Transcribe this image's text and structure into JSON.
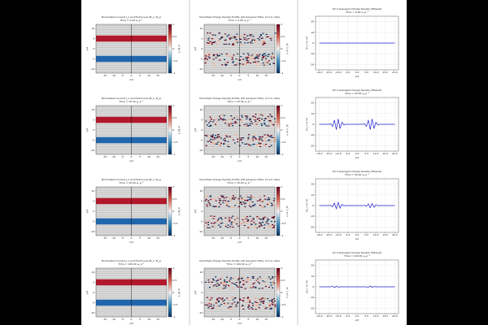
{
  "chart_data": [
    {
      "type": "heatmap",
      "title": "Normalized Current J_z and Field Lines (B_x, B_y)",
      "subtitle": "Time = 0.00 ω_p⁻¹",
      "xlabel": "x/d",
      "ylabel": "y/d",
      "xlim": [
        -20,
        20
      ],
      "xticks": [
        -15,
        -10,
        -5,
        0,
        5,
        10,
        15
      ],
      "ylim": [
        -12,
        12
      ],
      "yticks": [
        -10,
        -5,
        0,
        5,
        10
      ],
      "colorbar_label": "J_z/J_0",
      "clim": [
        -1,
        1
      ],
      "cticks": [
        -1,
        -0.5,
        0,
        0.5,
        1
      ]
    },
    {
      "type": "heatmap_noise",
      "title": "Smoothed Charge Density Profile (2D Gaussian Filter, σ=1.0 cells)",
      "subtitle": "Time = 0.00 ω_p⁻¹",
      "xlabel": "x/d",
      "ylabel": "y/d",
      "xlim": [
        -20,
        20
      ],
      "xticks": [
        -15,
        -10,
        -5,
        0,
        5,
        10,
        15
      ],
      "ylim": [
        -12,
        12
      ],
      "yticks": [
        -10,
        -5,
        0,
        5,
        10
      ],
      "colorbar_label": "ρ (e n_0)",
      "clim": [
        -1,
        1
      ],
      "cticks": [
        -1,
        -0.5,
        0,
        0.5,
        1
      ]
    },
    {
      "type": "line",
      "title": "1D X-Averaged Charge Density (Filtered)",
      "subtitle": "Time = 0.00 ω_p⁻¹",
      "xlabel": "x/d",
      "ylabel": "⟨ρ⟩_x (e n₀)",
      "grid": true,
      "color": "#1f1fd0",
      "xlim": [
        -22,
        22
      ],
      "xticks": [
        {
          "value": -20,
          "label": "-20.0"
        },
        {
          "value": -15,
          "label": "-15.0"
        },
        {
          "value": -10,
          "label": "-10.0"
        },
        {
          "value": -5,
          "label": "-5.0"
        },
        {
          "value": 0,
          "label": "0.0"
        },
        {
          "value": 5,
          "label": "5.0"
        },
        {
          "value": 10,
          "label": "10.0"
        },
        {
          "value": 15,
          "label": "15.0"
        },
        {
          "value": 20,
          "label": "20.0"
        }
      ],
      "ylim": [
        -25,
        25
      ],
      "yticks": [
        -20,
        -10,
        0,
        10,
        20
      ],
      "x": [
        -20,
        -19,
        -18,
        -17,
        -16,
        -15,
        -14,
        -13,
        -12,
        -11,
        -10,
        -9,
        -8,
        -7,
        -6,
        -5,
        -4,
        -3,
        -2,
        -1,
        0,
        1,
        2,
        3,
        4,
        5,
        6,
        7,
        8,
        9,
        10,
        11,
        12,
        13,
        14,
        15,
        16,
        17,
        18,
        19,
        20
      ],
      "values": [
        0,
        0,
        0,
        0,
        0,
        0,
        0,
        0,
        0,
        0,
        0,
        0,
        0,
        0,
        0,
        0,
        0,
        0,
        0,
        0,
        0,
        0,
        0,
        0,
        0,
        0,
        0,
        0,
        0,
        0,
        0,
        0,
        0,
        0,
        0,
        0,
        0,
        0,
        0,
        0,
        0
      ]
    },
    {
      "type": "heatmap",
      "title": "Normalized Current J_z and Field Lines (B_x, B_y)",
      "subtitle": "Time = 25.00 ω_p⁻¹",
      "xlabel": "x/d",
      "ylabel": "y/d",
      "xlim": [
        -20,
        20
      ],
      "xticks": [
        -15,
        -10,
        -5,
        0,
        5,
        10,
        15
      ],
      "ylim": [
        -12,
        12
      ],
      "yticks": [
        -10,
        -5,
        0,
        5,
        10
      ],
      "colorbar_label": "J_z/J_0",
      "clim": [
        -1,
        1
      ],
      "cticks": [
        -1,
        -0.5,
        0,
        0.5,
        1
      ]
    },
    {
      "type": "heatmap_noise",
      "title": "Smoothed Charge Density Profile (2D Gaussian Filter, σ=1.0 cells)",
      "subtitle": "Time = 25.00 ω_p⁻¹",
      "xlabel": "x/d",
      "ylabel": "y/d",
      "xlim": [
        -20,
        20
      ],
      "xticks": [
        -15,
        -10,
        -5,
        0,
        5,
        10,
        15
      ],
      "ylim": [
        -12,
        12
      ],
      "yticks": [
        -10,
        -5,
        0,
        5,
        10
      ],
      "colorbar_label": "ρ (e n_0)",
      "clim": [
        -1,
        1
      ],
      "cticks": [
        -1,
        -0.5,
        0,
        0.5,
        1
      ]
    },
    {
      "type": "line",
      "title": "1D X-Averaged Charge Density (Filtered)",
      "subtitle": "Time = 25.00 ω_p⁻¹",
      "xlabel": "x/d",
      "ylabel": "⟨ρ⟩_x (e n₀)",
      "grid": true,
      "color": "#1f1fd0",
      "xlim": [
        -22,
        22
      ],
      "xticks": [
        {
          "value": -20,
          "label": "-20.0"
        },
        {
          "value": -15,
          "label": "-15.0"
        },
        {
          "value": -10,
          "label": "-10.0"
        },
        {
          "value": -5,
          "label": "-5.0"
        },
        {
          "value": 0,
          "label": "0.0"
        },
        {
          "value": 5,
          "label": "5.0"
        },
        {
          "value": 10,
          "label": "10.0"
        },
        {
          "value": 15,
          "label": "15.0"
        },
        {
          "value": 20,
          "label": "20.0"
        }
      ],
      "ylim": [
        -25,
        25
      ],
      "yticks": [
        -20,
        -10,
        0,
        10,
        20
      ],
      "x": [
        -20,
        -19,
        -18,
        -17,
        -16,
        -15,
        -14,
        -13,
        -12,
        -11,
        -10,
        -9,
        -8,
        -7,
        -6,
        -5,
        -4,
        -3,
        -2,
        -1,
        0,
        1,
        2,
        3,
        4,
        5,
        6,
        7,
        8,
        9,
        10,
        11,
        12,
        13,
        14,
        15,
        16,
        17,
        18,
        19,
        20
      ],
      "values": [
        0,
        0,
        0,
        0,
        0,
        0,
        0.5,
        -2,
        4,
        -5,
        5,
        -4,
        2,
        -0.5,
        0,
        0,
        0,
        0,
        0,
        0,
        0,
        0,
        0,
        0,
        0.5,
        -2,
        4,
        -5,
        5,
        -4,
        2,
        -0.5,
        0,
        0,
        0,
        0,
        0,
        0,
        0,
        0,
        0
      ]
    },
    {
      "type": "heatmap",
      "title": "Normalized Current J_z and Field Lines (B_x, B_y)",
      "subtitle": "Time = 50.00 ω_p⁻¹",
      "xlabel": "x/d",
      "ylabel": "y/d",
      "xlim": [
        -20,
        20
      ],
      "xticks": [
        -15,
        -10,
        -5,
        0,
        5,
        10,
        15
      ],
      "ylim": [
        -12,
        12
      ],
      "yticks": [
        -10,
        -5,
        0,
        5,
        10
      ],
      "colorbar_label": "J_z/J_0",
      "clim": [
        -1,
        1
      ],
      "cticks": [
        -1,
        -0.5,
        0,
        0.5,
        1
      ]
    },
    {
      "type": "heatmap_noise",
      "title": "Smoothed Charge Density Profile (2D Gaussian Filter, σ=1.0 cells)",
      "subtitle": "Time = 50.00 ω_p⁻¹",
      "xlabel": "x/d",
      "ylabel": "y/d",
      "xlim": [
        -20,
        20
      ],
      "xticks": [
        -15,
        -10,
        -5,
        0,
        5,
        10,
        15
      ],
      "ylim": [
        -12,
        12
      ],
      "yticks": [
        -10,
        -5,
        0,
        5,
        10
      ],
      "colorbar_label": "ρ (e n_0)",
      "clim": [
        -1,
        1
      ],
      "cticks": [
        -1,
        -0.5,
        0,
        0.5,
        1
      ]
    },
    {
      "type": "line",
      "title": "1D X-Averaged Charge Density (Filtered)",
      "subtitle": "Time = 50.00 ω_p⁻¹",
      "xlabel": "x/d",
      "ylabel": "⟨ρ⟩_x (e n₀)",
      "grid": true,
      "color": "#1f1fd0",
      "xlim": [
        -22,
        22
      ],
      "xticks": [
        {
          "value": -20,
          "label": "-20.0"
        },
        {
          "value": -15,
          "label": "-15.0"
        },
        {
          "value": -10,
          "label": "-10.0"
        },
        {
          "value": -5,
          "label": "-5.0"
        },
        {
          "value": 0,
          "label": "0.0"
        },
        {
          "value": 5,
          "label": "5.0"
        },
        {
          "value": 10,
          "label": "10.0"
        },
        {
          "value": 15,
          "label": "15.0"
        },
        {
          "value": 20,
          "label": "20.0"
        }
      ],
      "ylim": [
        -25,
        25
      ],
      "yticks": [
        -20,
        -10,
        0,
        10,
        20
      ],
      "x": [
        -20,
        -19,
        -18,
        -17,
        -16,
        -15,
        -14,
        -13,
        -12,
        -11,
        -10,
        -9,
        -8,
        -7,
        -6,
        -5,
        -4,
        -3,
        -2,
        -1,
        0,
        1,
        2,
        3,
        4,
        5,
        6,
        7,
        8,
        9,
        10,
        11,
        12,
        13,
        14,
        15,
        16,
        17,
        18,
        19,
        20
      ],
      "values": [
        0,
        0,
        0,
        0,
        0,
        0,
        0.3,
        -1.2,
        2.4,
        -3,
        3,
        -2.4,
        1.2,
        -0.3,
        0,
        0,
        0,
        0,
        0,
        0,
        0,
        0,
        0,
        0,
        0.2,
        -0.8,
        1.6,
        -2,
        2,
        -1.6,
        0.8,
        -0.2,
        0,
        0,
        0,
        0,
        0,
        0,
        0,
        0,
        0
      ]
    },
    {
      "type": "heatmap",
      "title": "Normalized Current J_z and Field Lines (B_x, B_y)",
      "subtitle": "Time = 100.00 ω_p⁻¹",
      "xlabel": "x/d",
      "ylabel": "y/d",
      "xlim": [
        -20,
        20
      ],
      "xticks": [
        -15,
        -10,
        -5,
        0,
        5,
        10,
        15
      ],
      "ylim": [
        -12,
        12
      ],
      "yticks": [
        -10,
        -5,
        0,
        5,
        10
      ],
      "colorbar_label": "J_z/J_0",
      "clim": [
        -1,
        1
      ],
      "cticks": [
        -1,
        -0.5,
        0,
        0.5,
        1
      ]
    },
    {
      "type": "heatmap_noise",
      "title": "Smoothed Charge Density Profile (2D Gaussian Filter, σ=1.0 cells)",
      "subtitle": "Time = 100.00 ω_p⁻¹",
      "xlabel": "x/d",
      "ylabel": "y/d",
      "xlim": [
        -20,
        20
      ],
      "xticks": [
        -15,
        -10,
        -5,
        0,
        5,
        10,
        15
      ],
      "ylim": [
        -12,
        12
      ],
      "yticks": [
        -10,
        -5,
        0,
        5,
        10
      ],
      "colorbar_label": "ρ (e n_0)",
      "clim": [
        -1,
        1
      ],
      "cticks": [
        -1,
        -0.5,
        0,
        0.5,
        1
      ]
    },
    {
      "type": "line",
      "title": "1D X-Averaged Charge Density (Filtered)",
      "subtitle": "Time = 100.00 ω_p⁻¹",
      "xlabel": "x/d",
      "ylabel": "⟨ρ⟩_x (e n₀)",
      "grid": true,
      "color": "#1f1fd0",
      "xlim": [
        -22,
        22
      ],
      "xticks": [
        {
          "value": -20,
          "label": "-20.0"
        },
        {
          "value": -15,
          "label": "-15.0"
        },
        {
          "value": -10,
          "label": "-10.0"
        },
        {
          "value": -5,
          "label": "-5.0"
        },
        {
          "value": 0,
          "label": "0.0"
        },
        {
          "value": 5,
          "label": "5.0"
        },
        {
          "value": 10,
          "label": "10.0"
        },
        {
          "value": 15,
          "label": "15.0"
        },
        {
          "value": 20,
          "label": "20.0"
        }
      ],
      "ylim": [
        -25,
        25
      ],
      "yticks": [
        -20,
        -10,
        0,
        10,
        20
      ],
      "x": [
        -20,
        -19,
        -18,
        -17,
        -16,
        -15,
        -14,
        -13,
        -12,
        -11,
        -10,
        -9,
        -8,
        -7,
        -6,
        -5,
        -4,
        -3,
        -2,
        -1,
        0,
        1,
        2,
        3,
        4,
        5,
        6,
        7,
        8,
        9,
        10,
        11,
        12,
        13,
        14,
        15,
        16,
        17,
        18,
        19,
        20
      ],
      "values": [
        0,
        0,
        0,
        0,
        0,
        0,
        0,
        0.5,
        -0.8,
        0.6,
        -0.3,
        0,
        0,
        0,
        0,
        0,
        0,
        0,
        0,
        0,
        0,
        0,
        0,
        0,
        0,
        0,
        -0.5,
        0.8,
        -0.6,
        0.3,
        0,
        0,
        0,
        0,
        0,
        0,
        0,
        0,
        0,
        0,
        0
      ]
    }
  ]
}
